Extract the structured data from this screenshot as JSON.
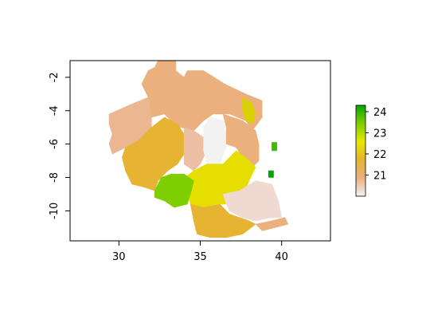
{
  "chart_data": {
    "type": "heatmap",
    "title": "",
    "xlabel": "",
    "ylabel": "",
    "xlim": [
      27.0,
      43.0
    ],
    "ylim": [
      -11.8,
      -1.0
    ],
    "x_ticks": [
      30,
      35,
      40
    ],
    "y_ticks": [
      -2,
      -4,
      -6,
      -8,
      -10
    ],
    "x_tick_labels": [
      "30",
      "35",
      "40"
    ],
    "y_tick_labels": [
      "-2",
      "-4",
      "-6",
      "-8",
      "-10"
    ],
    "legend": {
      "placement": "right",
      "min": 20.0,
      "max": 24.3,
      "ticks": [
        21,
        22,
        23,
        24
      ],
      "tick_labels": [
        "21",
        "22",
        "23",
        "24"
      ],
      "colors": [
        "#f2f2f2",
        "#ebb07e",
        "#e6b332",
        "#e6e600",
        "#7ecf00",
        "#00a600"
      ]
    },
    "regions": [
      {
        "value": 21.2,
        "color": "#ebb07e",
        "polygon": [
          [
            32.4,
            -1.0
          ],
          [
            33.5,
            -1.0
          ],
          [
            33.5,
            -1.6
          ],
          [
            34.0,
            -2.0
          ],
          [
            34.2,
            -1.6
          ],
          [
            35.2,
            -1.6
          ],
          [
            36.5,
            -2.4
          ],
          [
            37.8,
            -3.0
          ],
          [
            38.8,
            -3.4
          ],
          [
            38.8,
            -4.4
          ],
          [
            38.2,
            -5.2
          ],
          [
            37.8,
            -4.6
          ],
          [
            36.8,
            -4.2
          ],
          [
            35.8,
            -4.2
          ],
          [
            35.2,
            -4.6
          ],
          [
            34.6,
            -5.2
          ],
          [
            33.8,
            -5.0
          ],
          [
            33.2,
            -4.6
          ],
          [
            32.8,
            -4.2
          ],
          [
            32.0,
            -4.4
          ],
          [
            31.8,
            -3.2
          ],
          [
            31.4,
            -2.4
          ],
          [
            31.8,
            -1.6
          ],
          [
            32.2,
            -1.4
          ]
        ]
      },
      {
        "value": 21.0,
        "color": "#ecb690",
        "polygon": [
          [
            29.4,
            -4.2
          ],
          [
            30.8,
            -3.6
          ],
          [
            31.8,
            -3.2
          ],
          [
            32.0,
            -4.4
          ],
          [
            32.0,
            -5.0
          ],
          [
            31.2,
            -5.8
          ],
          [
            30.4,
            -6.2
          ],
          [
            29.6,
            -6.6
          ],
          [
            29.4,
            -6.0
          ],
          [
            29.6,
            -5.4
          ],
          [
            29.4,
            -4.8
          ]
        ]
      },
      {
        "value": 21.6,
        "color": "#e6b332",
        "polygon": [
          [
            30.4,
            -6.2
          ],
          [
            31.2,
            -5.8
          ],
          [
            32.0,
            -5.0
          ],
          [
            32.8,
            -4.4
          ],
          [
            33.6,
            -4.8
          ],
          [
            34.0,
            -5.4
          ],
          [
            34.0,
            -6.6
          ],
          [
            33.6,
            -7.2
          ],
          [
            33.0,
            -7.6
          ],
          [
            32.4,
            -8.2
          ],
          [
            32.2,
            -8.8
          ],
          [
            31.6,
            -8.6
          ],
          [
            30.8,
            -8.4
          ],
          [
            30.4,
            -7.6
          ],
          [
            30.2,
            -6.8
          ]
        ]
      },
      {
        "value": 20.9,
        "color": "#ecbfa4",
        "polygon": [
          [
            34.0,
            -5.0
          ],
          [
            34.6,
            -5.2
          ],
          [
            35.2,
            -5.6
          ],
          [
            35.4,
            -6.4
          ],
          [
            35.0,
            -7.2
          ],
          [
            34.6,
            -7.6
          ],
          [
            34.0,
            -7.2
          ],
          [
            34.0,
            -6.4
          ]
        ]
      },
      {
        "value": 20.0,
        "color": "#f2f2f2",
        "polygon": [
          [
            35.2,
            -5.0
          ],
          [
            35.6,
            -4.4
          ],
          [
            36.4,
            -4.6
          ],
          [
            36.6,
            -5.4
          ],
          [
            36.6,
            -6.2
          ],
          [
            36.2,
            -7.2
          ],
          [
            35.4,
            -7.2
          ],
          [
            35.2,
            -6.4
          ]
        ]
      },
      {
        "value": 21.3,
        "color": "#ebb07e",
        "polygon": [
          [
            36.4,
            -4.2
          ],
          [
            37.6,
            -4.6
          ],
          [
            38.4,
            -5.2
          ],
          [
            38.6,
            -6.0
          ],
          [
            38.6,
            -7.0
          ],
          [
            38.2,
            -7.4
          ],
          [
            37.6,
            -6.8
          ],
          [
            37.2,
            -6.2
          ],
          [
            36.6,
            -6.0
          ],
          [
            36.6,
            -5.0
          ]
        ]
      },
      {
        "value": 22.4,
        "color": "#d9d200",
        "polygon": [
          [
            37.6,
            -3.2
          ],
          [
            38.2,
            -3.6
          ],
          [
            38.4,
            -4.2
          ],
          [
            38.2,
            -4.8
          ],
          [
            37.8,
            -4.6
          ],
          [
            37.6,
            -4.0
          ]
        ]
      },
      {
        "value": 22.2,
        "color": "#e6de00",
        "polygon": [
          [
            34.6,
            -7.6
          ],
          [
            35.4,
            -7.2
          ],
          [
            36.4,
            -7.2
          ],
          [
            37.2,
            -6.4
          ],
          [
            37.8,
            -6.8
          ],
          [
            38.4,
            -7.4
          ],
          [
            38.0,
            -8.2
          ],
          [
            37.6,
            -9.2
          ],
          [
            37.0,
            -9.6
          ],
          [
            36.0,
            -9.6
          ],
          [
            35.2,
            -9.8
          ],
          [
            34.4,
            -9.6
          ],
          [
            34.2,
            -8.8
          ],
          [
            33.8,
            -8.2
          ]
        ]
      },
      {
        "value": 23.2,
        "color": "#7ecf00",
        "polygon": [
          [
            32.2,
            -8.8
          ],
          [
            32.6,
            -8.0
          ],
          [
            33.2,
            -7.8
          ],
          [
            34.0,
            -7.8
          ],
          [
            34.6,
            -8.2
          ],
          [
            34.4,
            -9.0
          ],
          [
            34.2,
            -9.6
          ],
          [
            33.4,
            -9.8
          ],
          [
            32.8,
            -9.4
          ],
          [
            32.2,
            -9.2
          ]
        ]
      },
      {
        "value": 20.6,
        "color": "#f0d9d1",
        "polygon": [
          [
            36.4,
            -9.0
          ],
          [
            37.4,
            -8.8
          ],
          [
            38.4,
            -8.2
          ],
          [
            39.4,
            -8.4
          ],
          [
            39.8,
            -9.4
          ],
          [
            40.0,
            -10.4
          ],
          [
            39.4,
            -10.4
          ],
          [
            38.4,
            -10.6
          ],
          [
            37.6,
            -10.4
          ],
          [
            36.8,
            -10.0
          ],
          [
            36.6,
            -9.6
          ]
        ]
      },
      {
        "value": 21.5,
        "color": "#e6b332",
        "polygon": [
          [
            34.4,
            -9.6
          ],
          [
            35.2,
            -9.8
          ],
          [
            36.2,
            -9.6
          ],
          [
            36.8,
            -10.2
          ],
          [
            37.4,
            -10.4
          ],
          [
            38.0,
            -10.6
          ],
          [
            38.4,
            -10.8
          ],
          [
            37.6,
            -11.4
          ],
          [
            36.6,
            -11.6
          ],
          [
            35.6,
            -11.6
          ],
          [
            34.8,
            -11.4
          ],
          [
            34.6,
            -10.6
          ]
        ]
      },
      {
        "value": 21.1,
        "color": "#ebb07e",
        "polygon": [
          [
            38.4,
            -10.8
          ],
          [
            39.4,
            -10.6
          ],
          [
            40.2,
            -10.4
          ],
          [
            40.4,
            -10.8
          ],
          [
            39.6,
            -11.0
          ],
          [
            38.8,
            -11.2
          ]
        ]
      },
      {
        "value": 24.0,
        "color": "#00a600",
        "polygon": [
          [
            39.2,
            -7.6
          ],
          [
            39.5,
            -7.6
          ],
          [
            39.5,
            -8.0
          ],
          [
            39.2,
            -8.0
          ]
        ]
      },
      {
        "value": 23.6,
        "color": "#3fba00",
        "polygon": [
          [
            39.4,
            -5.9
          ],
          [
            39.7,
            -5.9
          ],
          [
            39.7,
            -6.4
          ],
          [
            39.4,
            -6.4
          ]
        ]
      }
    ]
  }
}
